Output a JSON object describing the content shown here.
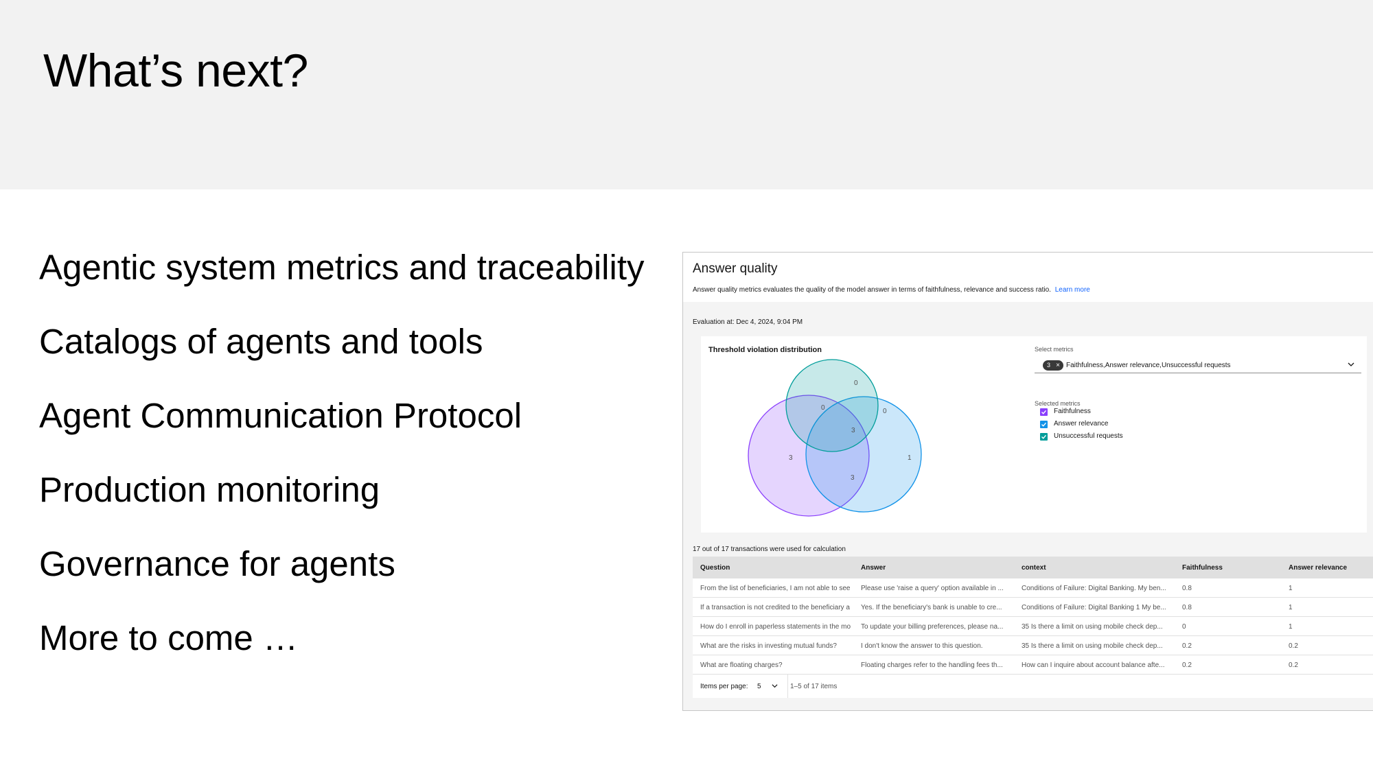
{
  "slide": {
    "title": "What’s next?",
    "bullets": [
      "Agentic system metrics and traceability",
      "Catalogs of agents and tools",
      "Agent Communication Protocol",
      "Production monitoring",
      "Governance for agents",
      "More to come …"
    ]
  },
  "panel": {
    "title": "Answer quality",
    "description": "Answer quality metrics evaluates the quality of the model answer in terms of faithfulness, relevance and success ratio.",
    "learn_more": "Learn more",
    "evaluation": "Evaluation at: Dec 4, 2024, 9:04 PM",
    "chart": {
      "title": "Threshold violation distribution",
      "venn_values": {
        "top_only": "0",
        "top_left": "0",
        "top_right": "0",
        "center": "3",
        "left_only": "3",
        "right_only": "1",
        "bottom": "3"
      },
      "colors": {
        "faithfulness": "#8a3ffc",
        "answer_relevance": "#1192e8",
        "unsuccessful_requests": "#009d9a"
      }
    },
    "select_metrics": {
      "label": "Select metrics",
      "tag_count": "3",
      "tag_close": "×",
      "value": "Faithfulness,Answer relevance,Unsuccessful requests",
      "icon": "chevron-down-icon"
    },
    "selected_metrics": {
      "label": "Selected metrics",
      "items": [
        "Faithfulness",
        "Answer relevance",
        "Unsuccessful requests"
      ]
    },
    "transactions_note": "17 out of 17 transactions were used for calculation",
    "table": {
      "columns": [
        "Question",
        "Answer",
        "context",
        "Faithfulness",
        "Answer relevance"
      ],
      "rows": [
        [
          "From the list of beneficiaries, I am not able to see",
          "Please use 'raise a query' option available in ...",
          "Conditions of Failure: Digital Banking. My ben...",
          "0.8",
          "1"
        ],
        [
          "If a transaction is not credited to the beneficiary a",
          "Yes. If the beneficiary's bank is unable to cre...",
          "Conditions of Failure: Digital Banking 1 My be...",
          "0.8",
          "1"
        ],
        [
          "How do I enroll in paperless statements in the mo",
          "To update your billing preferences, please na...",
          "35 Is there a limit on using mobile check dep...",
          "0",
          "1"
        ],
        [
          "What are the risks in investing mutual funds?",
          "I don't know the answer to this question.",
          "35 Is there a limit on using mobile check dep...",
          "0.2",
          "0.2"
        ],
        [
          "What are floating charges?",
          "Floating charges refer to the handling fees th...",
          "How can I inquire about account balance afte...",
          "0.2",
          "0.2"
        ]
      ]
    },
    "pagination": {
      "items_per_page_label": "Items per page:",
      "items_per_page": "5",
      "range": "1–5 of 17 items"
    }
  }
}
